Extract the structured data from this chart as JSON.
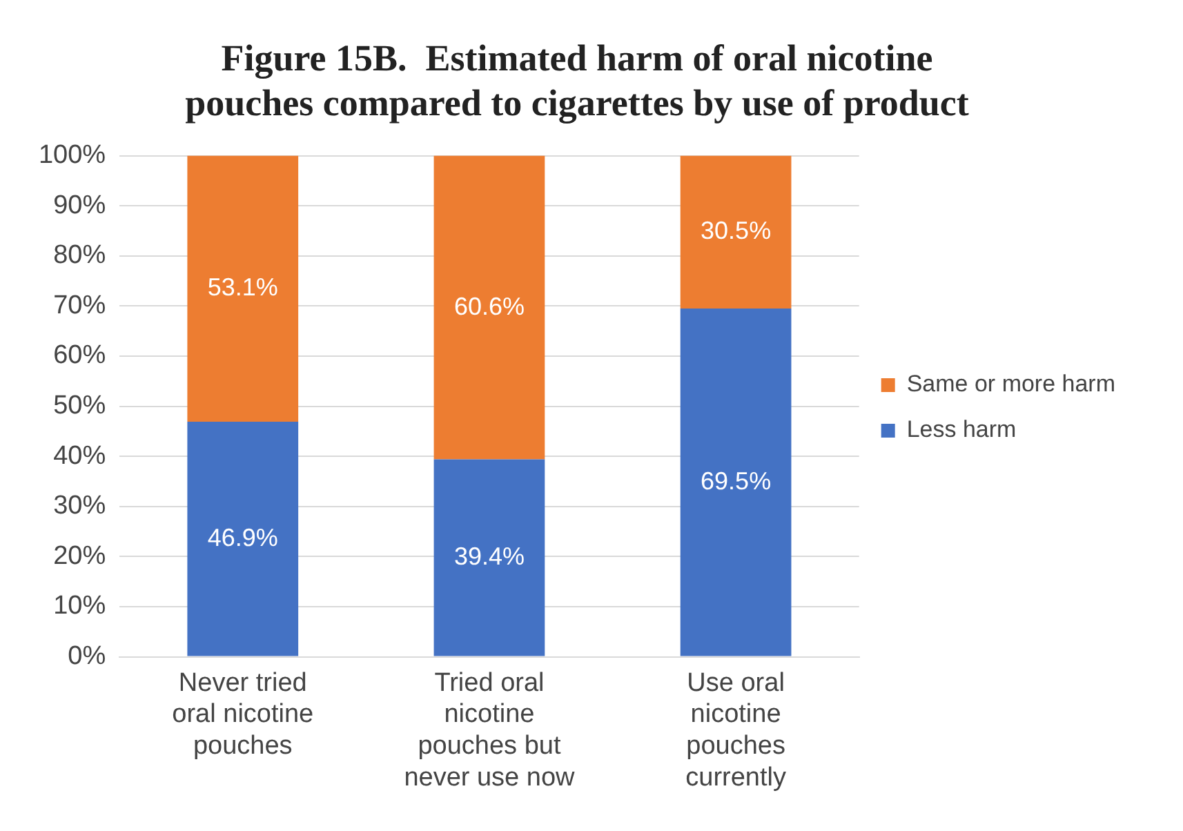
{
  "chart_data": {
    "type": "bar",
    "stacked": true,
    "title": "Figure 15B.  Estimated harm of oral nicotine pouches compared to cigarettes by use of product",
    "categories": [
      "Never tried oral nicotine pouches",
      "Tried oral nicotine pouches but never use now",
      "Use oral nicotine pouches currently"
    ],
    "series": [
      {
        "name": "Less harm",
        "color": "#4472c4",
        "values": [
          46.9,
          39.4,
          69.5
        ]
      },
      {
        "name": "Same or more harm",
        "color": "#ed7d31",
        "values": [
          53.1,
          60.6,
          30.5
        ]
      }
    ],
    "ylim": [
      0,
      100
    ],
    "yticks": [
      {
        "value": 0,
        "label": "0%"
      },
      {
        "value": 10,
        "label": "10%"
      },
      {
        "value": 20,
        "label": "20%"
      },
      {
        "value": 30,
        "label": "30%"
      },
      {
        "value": 40,
        "label": "40%"
      },
      {
        "value": 50,
        "label": "50%"
      },
      {
        "value": 60,
        "label": "60%"
      },
      {
        "value": 70,
        "label": "70%"
      },
      {
        "value": 80,
        "label": "80%"
      },
      {
        "value": 90,
        "label": "90%"
      },
      {
        "value": 100,
        "label": "100%"
      }
    ],
    "value_labels": [
      [
        "46.9%",
        "39.4%",
        "69.5%"
      ],
      [
        "53.1%",
        "60.6%",
        "30.5%"
      ]
    ],
    "grid": "y",
    "legend": "right"
  }
}
